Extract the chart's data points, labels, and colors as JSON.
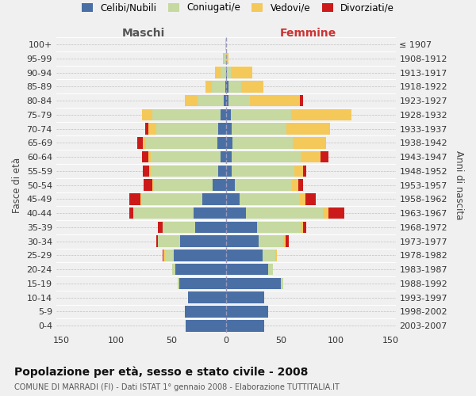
{
  "age_groups": [
    "0-4",
    "5-9",
    "10-14",
    "15-19",
    "20-24",
    "25-29",
    "30-34",
    "35-39",
    "40-44",
    "45-49",
    "50-54",
    "55-59",
    "60-64",
    "65-69",
    "70-74",
    "75-79",
    "80-84",
    "85-89",
    "90-94",
    "95-99",
    "100+"
  ],
  "birth_years": [
    "2003-2007",
    "1998-2002",
    "1993-1997",
    "1988-1992",
    "1983-1987",
    "1978-1982",
    "1973-1977",
    "1968-1972",
    "1963-1967",
    "1958-1962",
    "1953-1957",
    "1948-1952",
    "1943-1947",
    "1938-1942",
    "1933-1937",
    "1928-1932",
    "1923-1927",
    "1918-1922",
    "1913-1917",
    "1908-1912",
    "≤ 1907"
  ],
  "maschi_celibi": [
    37,
    38,
    35,
    43,
    46,
    48,
    42,
    28,
    30,
    22,
    12,
    7,
    5,
    8,
    7,
    5,
    2,
    1,
    0,
    0,
    0
  ],
  "maschi_coniugati": [
    0,
    0,
    0,
    1,
    3,
    8,
    20,
    30,
    55,
    55,
    54,
    62,
    64,
    65,
    57,
    62,
    24,
    12,
    5,
    2,
    1
  ],
  "maschi_vedovi": [
    0,
    0,
    0,
    0,
    0,
    1,
    0,
    0,
    0,
    1,
    1,
    1,
    2,
    3,
    7,
    10,
    12,
    6,
    5,
    1,
    0
  ],
  "maschi_divorziati": [
    0,
    0,
    0,
    0,
    0,
    1,
    2,
    4,
    3,
    10,
    8,
    6,
    6,
    5,
    3,
    0,
    0,
    0,
    0,
    0,
    0
  ],
  "femmine_nubili": [
    35,
    38,
    35,
    50,
    38,
    33,
    30,
    28,
    18,
    12,
    8,
    5,
    5,
    6,
    5,
    4,
    2,
    2,
    1,
    0,
    0
  ],
  "femmine_coniugate": [
    0,
    0,
    0,
    2,
    5,
    12,
    22,
    40,
    70,
    55,
    52,
    57,
    63,
    55,
    50,
    55,
    20,
    12,
    3,
    0,
    0
  ],
  "femmine_vedove": [
    0,
    0,
    0,
    0,
    0,
    1,
    2,
    2,
    5,
    5,
    6,
    8,
    18,
    30,
    40,
    55,
    45,
    20,
    20,
    2,
    0
  ],
  "femmine_divorziate": [
    0,
    0,
    0,
    0,
    0,
    0,
    3,
    3,
    15,
    10,
    4,
    3,
    7,
    0,
    0,
    0,
    3,
    0,
    0,
    0,
    0
  ],
  "color_celibi": "#4a6fa5",
  "color_coniugati": "#c5d9a0",
  "color_vedovi": "#f5c85a",
  "color_divorziati": "#cc1a1a",
  "title": "Popolazione per età, sesso e stato civile - 2008",
  "subtitle": "COMUNE DI MARRADI (FI) - Dati ISTAT 1° gennaio 2008 - Elaborazione TUTTITALIA.IT",
  "legend_labels": [
    "Celibi/Nubili",
    "Coniugati/e",
    "Vedovi/e",
    "Divorziati/e"
  ],
  "xlim": 155,
  "bg_color": "#f0f0f0"
}
